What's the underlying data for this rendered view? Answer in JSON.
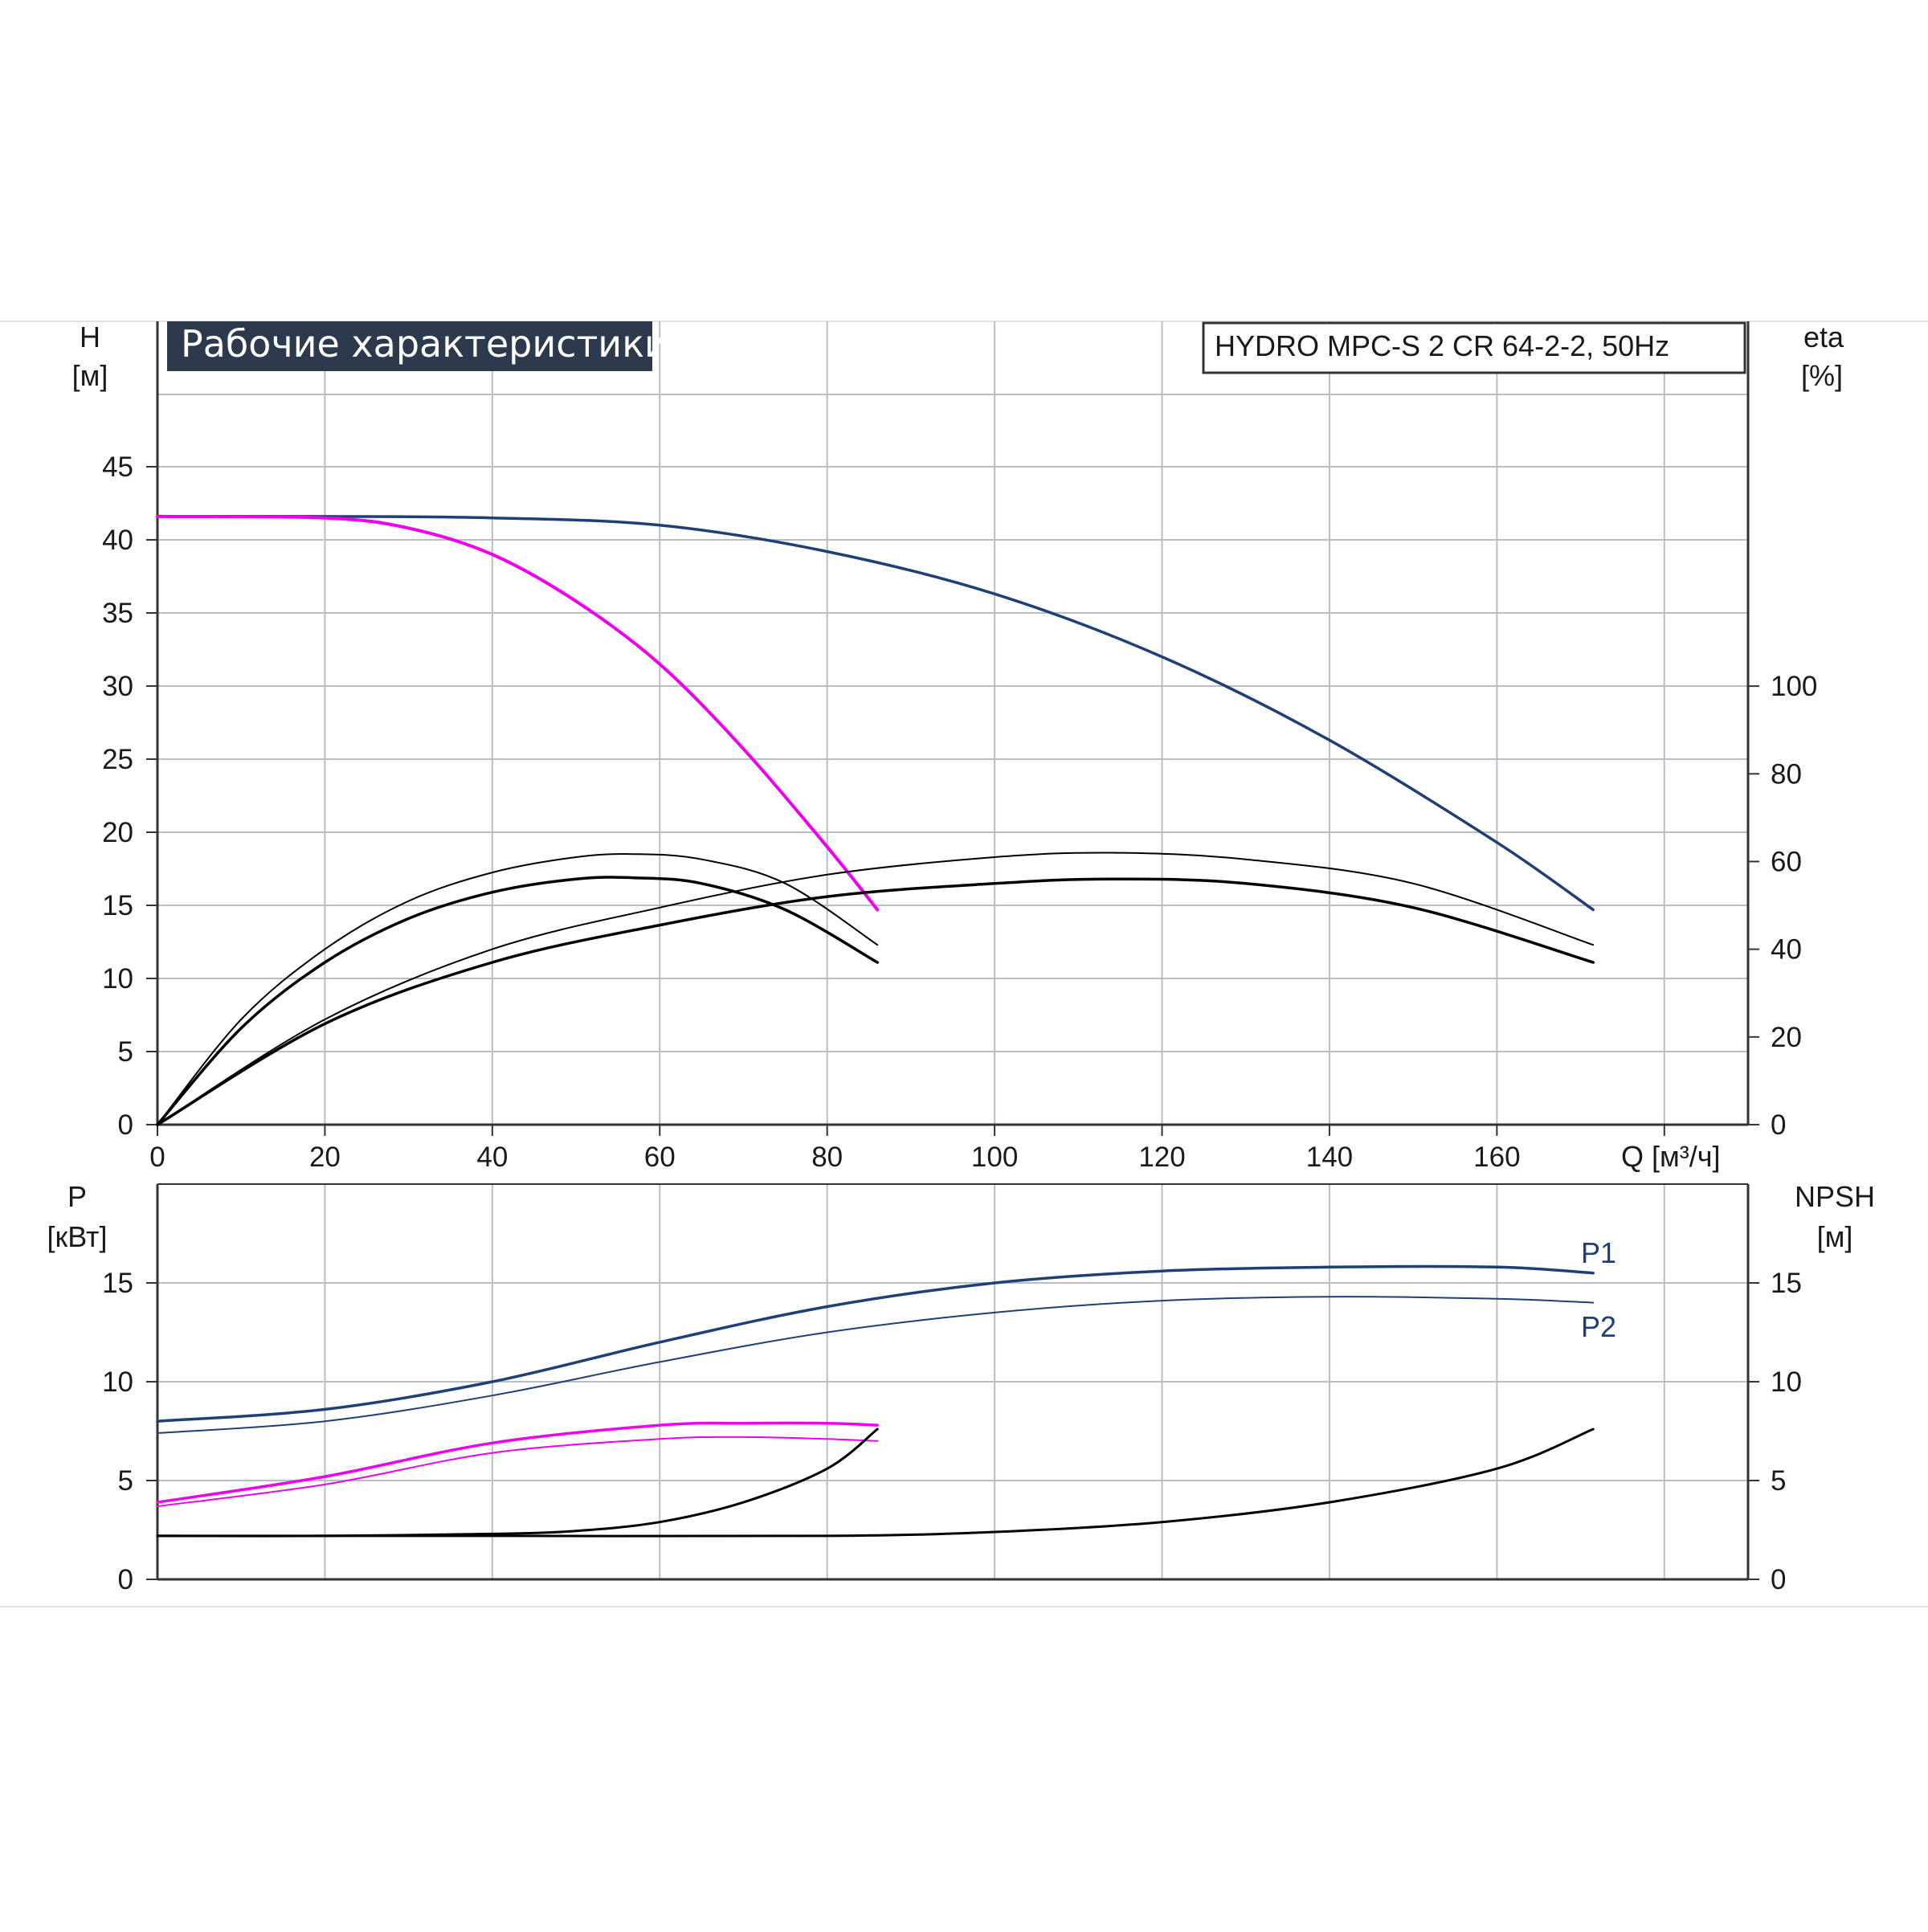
{
  "chart_data": [
    {
      "type": "line",
      "title": "Рабочие характеристики",
      "subtitle": "HYDRO MPC-S 2 CR 64-2-2, 50Hz",
      "ylabel_left": [
        "H",
        "[м]"
      ],
      "ylabel_right": [
        "eta",
        "[%]"
      ],
      "xlabel": "Q [м³/ч]",
      "xlim": [
        0,
        190
      ],
      "ylim": [
        0,
        50
      ],
      "ylim_right": [
        0,
        166.7
      ],
      "x_ticks": [
        "0",
        "20",
        "40",
        "60",
        "80",
        "100",
        "120",
        "140",
        "160"
      ],
      "y_ticks_left": [
        "0",
        "5",
        "10",
        "15",
        "20",
        "25",
        "30",
        "35",
        "40",
        "45"
      ],
      "y_ticks_right": [
        "0",
        "20",
        "40",
        "60",
        "80",
        "100"
      ],
      "grid": true,
      "series": [
        {
          "color": "#1f3f77",
          "axis": "left",
          "x": [
            0,
            20,
            40,
            60,
            80,
            100,
            120,
            140,
            160,
            171.5
          ],
          "y": [
            41.6,
            41.6,
            41.5,
            41.0,
            39.2,
            36.3,
            32.0,
            26.3,
            19.3,
            14.7
          ]
        },
        {
          "color": "#ee00ee",
          "axis": "left",
          "x": [
            0,
            20,
            30,
            40,
            50,
            60,
            70,
            80,
            86
          ],
          "y": [
            41.6,
            41.5,
            40.8,
            39.0,
            35.8,
            31.5,
            25.7,
            19.0,
            14.7
          ]
        },
        {
          "color": "#000000",
          "axis": "right",
          "x": [
            0,
            10,
            20,
            30,
            40,
            50,
            57,
            65,
            75,
            86
          ],
          "y": [
            0,
            22,
            37,
            47,
            53,
            56,
            56.3,
            55,
            49,
            37
          ]
        },
        {
          "color": "#000000",
          "axis": "right",
          "x": [
            0,
            10,
            20,
            30,
            40,
            50,
            57,
            65,
            75,
            86
          ],
          "y": [
            0,
            24,
            40,
            51,
            57.5,
            61,
            61.7,
            60.5,
            55,
            41
          ]
        },
        {
          "color": "#000000",
          "axis": "right",
          "x": [
            0,
            20,
            40,
            60,
            80,
            100,
            114,
            130,
            150,
            171.5
          ],
          "y": [
            0,
            23,
            37,
            45.5,
            52,
            55,
            56,
            55,
            49.5,
            37
          ]
        },
        {
          "color": "#000000",
          "axis": "right",
          "x": [
            0,
            20,
            40,
            60,
            80,
            100,
            114,
            130,
            150,
            171.5
          ],
          "y": [
            0,
            24,
            40,
            49.5,
            57,
            61,
            62,
            60.5,
            55,
            41
          ]
        }
      ]
    },
    {
      "type": "line",
      "ylabel_left": [
        "P",
        "[кВт]"
      ],
      "ylabel_right": [
        "NPSH",
        "[м]"
      ],
      "xlim": [
        0,
        190
      ],
      "ylim": [
        0,
        20
      ],
      "ylim_right": [
        0,
        20
      ],
      "y_ticks_left": [
        "0",
        "5",
        "10",
        "15"
      ],
      "y_ticks_right": [
        "0",
        "5",
        "10",
        "15"
      ],
      "grid": true,
      "series": [
        {
          "name": "P1",
          "color": "#1f3f77",
          "axis": "left",
          "x": [
            0,
            20,
            40,
            60,
            80,
            100,
            120,
            140,
            160,
            171.5
          ],
          "y": [
            8.0,
            8.6,
            10.0,
            12.0,
            13.8,
            15.0,
            15.6,
            15.8,
            15.8,
            15.5
          ]
        },
        {
          "name": "P2",
          "color": "#1f3f77",
          "axis": "left",
          "x": [
            0,
            20,
            40,
            60,
            80,
            100,
            120,
            140,
            160,
            171.5
          ],
          "y": [
            7.4,
            8.0,
            9.3,
            11.0,
            12.5,
            13.5,
            14.1,
            14.3,
            14.2,
            14.0
          ]
        },
        {
          "color": "#ee00ee",
          "axis": "left",
          "x": [
            0,
            20,
            40,
            60,
            70,
            80,
            86
          ],
          "y": [
            3.9,
            5.2,
            6.9,
            7.8,
            7.9,
            7.9,
            7.8
          ]
        },
        {
          "color": "#ee00ee",
          "axis": "left",
          "x": [
            0,
            20,
            40,
            60,
            70,
            80,
            86
          ],
          "y": [
            3.7,
            4.8,
            6.4,
            7.1,
            7.2,
            7.1,
            7.0
          ]
        },
        {
          "color": "#000000",
          "axis": "right",
          "x": [
            0,
            20,
            40,
            50,
            60,
            70,
            80,
            86
          ],
          "y": [
            2.2,
            2.2,
            2.3,
            2.45,
            2.9,
            3.9,
            5.6,
            7.6
          ]
        },
        {
          "color": "#000000",
          "axis": "right",
          "x": [
            0,
            40,
            80,
            100,
            120,
            140,
            160,
            171.5
          ],
          "y": [
            2.2,
            2.2,
            2.2,
            2.4,
            2.9,
            3.9,
            5.6,
            7.6
          ]
        }
      ]
    }
  ]
}
